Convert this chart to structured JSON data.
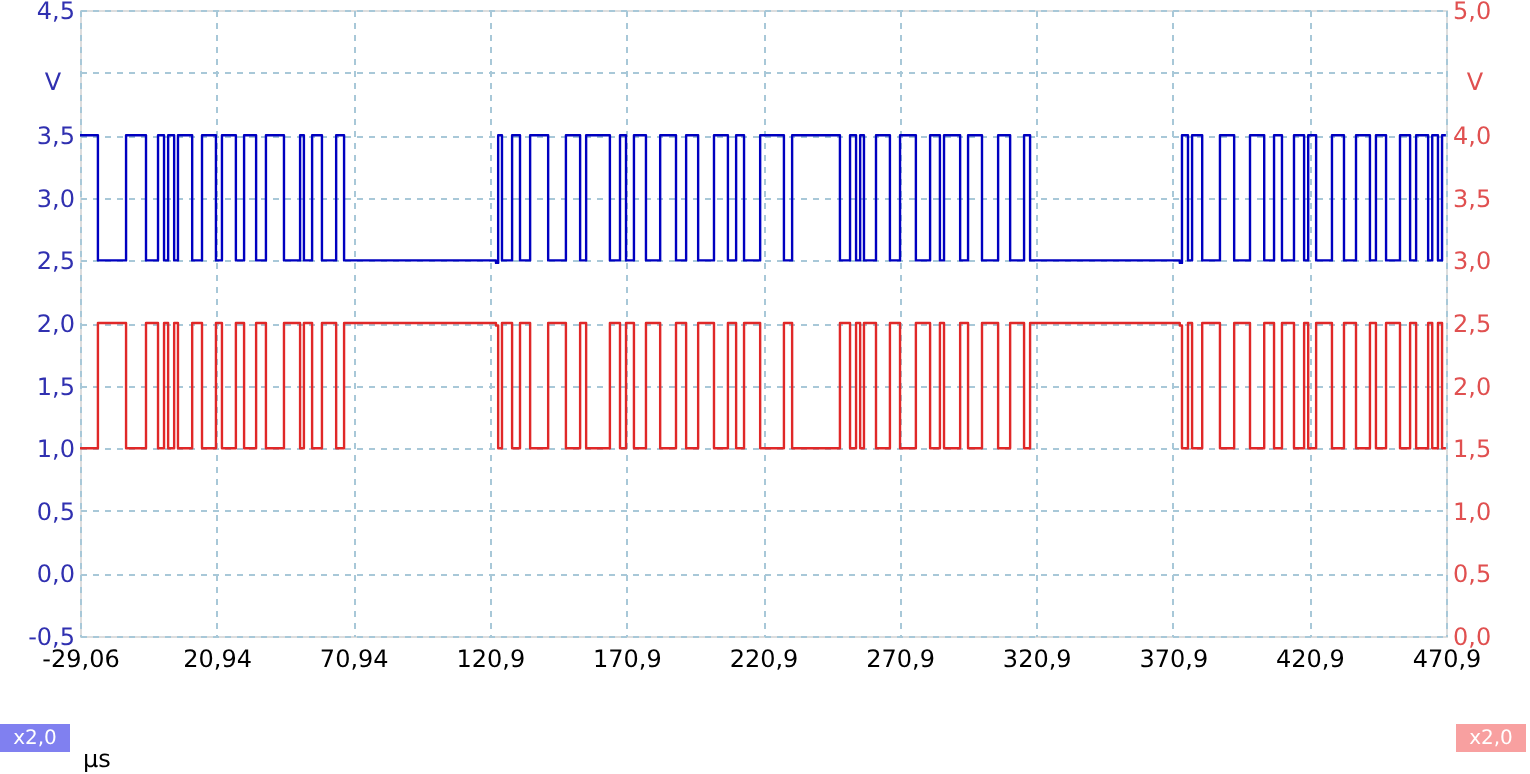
{
  "chart_data": {
    "type": "step",
    "xlabel": "µs",
    "ylabel": "V",
    "y2label": "V",
    "xlim": [
      -29.06,
      470.94
    ],
    "xticks": [
      {
        "value": -29.06,
        "label": "-29,06"
      },
      {
        "value": 20.94,
        "label": "20,94"
      },
      {
        "value": 70.94,
        "label": "70,94"
      },
      {
        "value": 120.94,
        "label": "120,9"
      },
      {
        "value": 170.94,
        "label": "170,9"
      },
      {
        "value": 220.94,
        "label": "220,9"
      },
      {
        "value": 270.94,
        "label": "270,9"
      },
      {
        "value": 320.94,
        "label": "320,9"
      },
      {
        "value": 370.94,
        "label": "370,9"
      },
      {
        "value": 420.94,
        "label": "420,9"
      },
      {
        "value": 470.94,
        "label": "470,9"
      }
    ],
    "ylim": [
      -0.5,
      4.5
    ],
    "yticks": [
      {
        "value": -0.5,
        "label": "-0,5"
      },
      {
        "value": 0,
        "label": "0,0"
      },
      {
        "value": 0.5,
        "label": "0,5"
      },
      {
        "value": 1,
        "label": "1,0"
      },
      {
        "value": 1.5,
        "label": "1,5"
      },
      {
        "value": 2,
        "label": "2,0"
      },
      {
        "value": 2.5,
        "label": "2,5"
      },
      {
        "value": 3,
        "label": "3,0"
      },
      {
        "value": 3.5,
        "label": "3,5"
      },
      {
        "value": 4,
        "label": null
      },
      {
        "value": 4.5,
        "label": "4,5"
      }
    ],
    "y2lim": [
      0,
      5
    ],
    "y2ticks": [
      {
        "value": 0,
        "label": "0,0"
      },
      {
        "value": 0.5,
        "label": "0,5"
      },
      {
        "value": 1,
        "label": "1,0"
      },
      {
        "value": 1.5,
        "label": "1,5"
      },
      {
        "value": 2,
        "label": "2,0"
      },
      {
        "value": 2.5,
        "label": "2,5"
      },
      {
        "value": 3,
        "label": "3,0"
      },
      {
        "value": 3.5,
        "label": "3,5"
      },
      {
        "value": 4,
        "label": "4,0"
      },
      {
        "value": 4.5,
        "label": null
      },
      {
        "value": 5,
        "label": "5,0"
      }
    ],
    "grid": true,
    "annotations": [
      "x2,0",
      "x2,0"
    ],
    "x": [
      -29.06,
      -22.5,
      -12.2,
      -4.9,
      -0.5,
      1.7,
      3.2,
      5.4,
      6.8,
      12.0,
      15.6,
      20.7,
      22.9,
      28.0,
      31.0,
      35.4,
      39.0,
      45.6,
      51.5,
      52.9,
      55.9,
      59.5,
      64.7,
      67.6,
      123.2,
      124.0,
      125.4,
      129.1,
      132.0,
      135.7,
      142.3,
      148.8,
      154.0,
      156.2,
      164.9,
      168.6,
      170.8,
      173.7,
      178.1,
      183.3,
      189.1,
      192.8,
      197.2,
      203.0,
      208.1,
      211.1,
      214.0,
      219.9,
      228.6,
      231.6,
      249.1,
      252.8,
      255.0,
      256.5,
      257.9,
      262.3,
      267.4,
      271.1,
      276.9,
      282.1,
      285.7,
      287.2,
      293.1,
      296.0,
      301.1,
      307.0,
      311.4,
      316.5,
      318.7,
      373.5,
      374.3,
      376.5,
      378.0,
      381.7,
      388.2,
      393.4,
      399.2,
      404.4,
      408.0,
      410.9,
      415.3,
      419.0,
      420.5,
      423.4,
      429.2,
      433.6,
      438.0,
      443.1,
      445.3,
      449.0,
      454.1,
      457.8,
      460.0,
      464.4,
      465.9,
      468.0,
      469.5,
      470.9
    ],
    "series": [
      {
        "color": "#0000c0",
        "values": [
          3.5,
          2.5,
          3.5,
          2.5,
          3.5,
          2.5,
          3.5,
          2.5,
          3.5,
          2.5,
          3.5,
          2.5,
          3.5,
          2.5,
          3.5,
          2.5,
          3.5,
          2.5,
          3.5,
          2.5,
          3.5,
          2.5,
          3.5,
          2.5,
          2.48,
          3.5,
          2.5,
          3.5,
          2.5,
          3.5,
          2.5,
          3.5,
          2.5,
          3.5,
          2.5,
          3.5,
          2.5,
          3.5,
          2.5,
          3.5,
          2.5,
          3.5,
          2.5,
          3.5,
          2.5,
          3.5,
          2.5,
          3.5,
          2.5,
          3.5,
          2.5,
          3.5,
          2.5,
          3.5,
          2.5,
          3.5,
          2.5,
          3.5,
          2.5,
          3.5,
          2.5,
          3.5,
          2.5,
          3.5,
          2.5,
          3.5,
          2.5,
          3.5,
          2.5,
          2.48,
          3.5,
          2.5,
          3.5,
          2.5,
          3.5,
          2.5,
          3.5,
          2.5,
          3.5,
          2.5,
          3.5,
          2.5,
          3.5,
          2.5,
          3.5,
          2.5,
          3.5,
          2.5,
          3.5,
          2.5,
          3.5,
          2.5,
          3.5,
          2.5,
          3.5,
          2.5,
          3.5,
          3.5
        ]
      },
      {
        "color": "#e02828",
        "axis": "y2",
        "values": [
          1.5,
          2.5,
          1.5,
          2.5,
          1.5,
          2.5,
          1.5,
          2.5,
          1.5,
          2.5,
          1.5,
          2.5,
          1.5,
          2.5,
          1.5,
          2.5,
          1.5,
          2.5,
          1.5,
          2.5,
          1.5,
          2.5,
          1.5,
          2.5,
          2.48,
          1.5,
          2.5,
          1.5,
          2.5,
          1.5,
          2.5,
          1.5,
          2.5,
          1.5,
          2.5,
          1.5,
          2.5,
          1.5,
          2.5,
          1.5,
          2.5,
          1.5,
          2.5,
          1.5,
          2.5,
          1.5,
          2.5,
          1.5,
          2.5,
          1.5,
          2.5,
          1.5,
          2.5,
          1.5,
          2.5,
          1.5,
          2.5,
          1.5,
          2.5,
          1.5,
          2.5,
          1.5,
          2.5,
          1.5,
          2.5,
          1.5,
          2.5,
          1.5,
          2.5,
          2.48,
          1.5,
          2.5,
          1.5,
          2.5,
          1.5,
          2.5,
          1.5,
          2.5,
          1.5,
          2.5,
          1.5,
          2.5,
          1.5,
          2.5,
          1.5,
          2.5,
          1.5,
          2.5,
          1.5,
          2.5,
          1.5,
          2.5,
          1.5,
          2.5,
          1.5,
          2.5,
          1.5,
          1.5
        ]
      }
    ]
  }
}
